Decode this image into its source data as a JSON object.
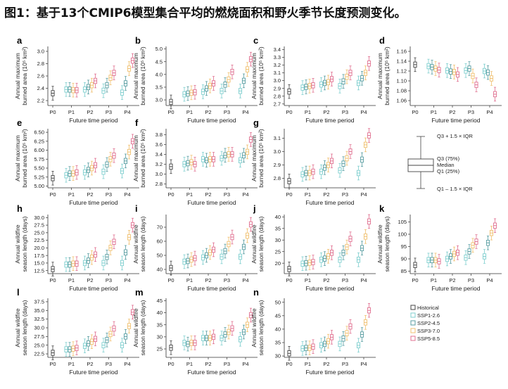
{
  "figure_title": "图1：基于13个CMIP6模型集合平均的燃烧面积和野火季节长度预测变化。",
  "xlabel": "Future time period",
  "categories": [
    "P0",
    "P1",
    "P2",
    "P3",
    "P4"
  ],
  "ylabel_area": [
    "Annual maximum",
    "burned area (10⁵ km²)"
  ],
  "ylabel_season": [
    "Annual wildfire",
    "season length (days)"
  ],
  "legend_items": [
    {
      "key": "historical",
      "label": "Historical",
      "color": "#444444"
    },
    {
      "key": "ssp126",
      "label": "SSP1-2.6",
      "color": "#7fcfcf"
    },
    {
      "key": "ssp245",
      "label": "SSP2-4.5",
      "color": "#5a9ea2"
    },
    {
      "key": "ssp370",
      "label": "SSP3-7.0",
      "color": "#f0c070"
    },
    {
      "key": "ssp585",
      "label": "SSP5-8.5",
      "color": "#e07090"
    }
  ],
  "box_legend": {
    "top": "Q3 + 1.5 × IQR",
    "q3": "Q3 (75%)",
    "median": "Median",
    "q1": "Q1 (25%)",
    "bottom": "Q1 – 1.5 × IQR"
  },
  "chart_data": [
    {
      "label": "a",
      "type": "box",
      "metric": "area",
      "ylim": [
        2.12,
        3.08
      ],
      "yticks": [
        "2.2",
        "2.4",
        "2.6",
        "2.8",
        "3.0"
      ],
      "historical": 2.32,
      "medians": [
        [
          2.38,
          2.38,
          2.37,
          2.37
        ],
        [
          2.38,
          2.42,
          2.45,
          2.52
        ],
        [
          2.36,
          2.45,
          2.57,
          2.65
        ],
        [
          2.33,
          2.48,
          2.72,
          2.85
        ]
      ]
    },
    {
      "label": "b",
      "type": "box",
      "metric": "area",
      "ylim": [
        2.78,
        5.1
      ],
      "yticks": [
        "3.0",
        "3.5",
        "4.0",
        "4.5",
        "5.0"
      ],
      "historical": 2.92,
      "medians": [
        [
          3.22,
          3.25,
          3.28,
          3.3
        ],
        [
          3.32,
          3.45,
          3.55,
          3.65
        ],
        [
          3.35,
          3.6,
          3.8,
          4.1
        ],
        [
          3.35,
          3.75,
          4.2,
          4.6
        ]
      ]
    },
    {
      "label": "c",
      "type": "box",
      "metric": "area",
      "ylim": [
        2.68,
        3.44
      ],
      "yticks": [
        "2.7",
        "2.8",
        "2.9",
        "3.0",
        "3.1",
        "3.2",
        "3.3",
        "3.4"
      ],
      "historical": 2.86,
      "medians": [
        [
          2.91,
          2.92,
          2.93,
          2.94
        ],
        [
          2.95,
          2.97,
          2.98,
          3.02
        ],
        [
          2.93,
          2.99,
          3.05,
          3.1
        ],
        [
          2.97,
          3.03,
          3.1,
          3.22
        ]
      ]
    },
    {
      "label": "d",
      "type": "box",
      "metric": "area",
      "ylim": [
        1.05,
        1.17
      ],
      "yticks": [
        "1.06",
        "1.08",
        "1.10",
        "1.12",
        "1.14",
        "1.16"
      ],
      "historical": 1.133,
      "medians": [
        [
          1.13,
          1.128,
          1.125,
          1.122
        ],
        [
          1.121,
          1.119,
          1.118,
          1.113
        ],
        [
          1.121,
          1.125,
          1.11,
          1.092
        ],
        [
          1.12,
          1.117,
          1.105,
          1.073
        ]
      ]
    },
    {
      "label": "e",
      "type": "box",
      "metric": "area",
      "ylim": [
        4.95,
        6.6
      ],
      "yticks": [
        "5.00",
        "5.25",
        "5.50",
        "5.75",
        "6.00",
        "6.25",
        "6.50"
      ],
      "historical": 5.22,
      "medians": [
        [
          5.3,
          5.35,
          5.35,
          5.38
        ],
        [
          5.38,
          5.45,
          5.5,
          5.58
        ],
        [
          5.4,
          5.6,
          5.75,
          5.85
        ],
        [
          5.42,
          5.7,
          5.95,
          6.25
        ]
      ]
    },
    {
      "label": "f",
      "type": "box",
      "metric": "area",
      "ylim": [
        2.72,
        3.92
      ],
      "yticks": [
        "2.8",
        "3.0",
        "3.2",
        "3.4",
        "3.6",
        "3.8"
      ],
      "historical": 3.15,
      "medians": [
        [
          3.2,
          3.22,
          3.24,
          3.2
        ],
        [
          3.3,
          3.28,
          3.3,
          3.3
        ],
        [
          3.32,
          3.38,
          3.4,
          3.4
        ],
        [
          3.28,
          3.38,
          3.45,
          3.7
        ]
      ]
    },
    {
      "label": "g",
      "type": "box",
      "metric": "area",
      "ylim": [
        2.73,
        3.17
      ],
      "yticks": [
        "2.8",
        "2.9",
        "3.0",
        "3.1"
      ],
      "historical": 2.78,
      "medians": [
        [
          2.83,
          2.84,
          2.84,
          2.85
        ],
        [
          2.85,
          2.88,
          2.9,
          2.93
        ],
        [
          2.86,
          2.91,
          2.95,
          3.0
        ],
        [
          2.84,
          2.94,
          3.05,
          3.12
        ]
      ]
    },
    {
      "label": "h",
      "type": "box",
      "metric": "season",
      "ylim": [
        11.5,
        31
      ],
      "yticks": [
        "12.5",
        "15.0",
        "17.5",
        "20.0",
        "22.5",
        "25.0",
        "27.5",
        "30.0"
      ],
      "historical": 13.0,
      "medians": [
        [
          14.5,
          14.5,
          14.8,
          14.8
        ],
        [
          15.0,
          15.8,
          16.8,
          17.8
        ],
        [
          15.0,
          17.0,
          20.0,
          22.0
        ],
        [
          15.0,
          18.5,
          23.5,
          27.5
        ]
      ]
    },
    {
      "label": "i",
      "type": "box",
      "metric": "season",
      "ylim": [
        37,
        79
      ],
      "yticks": [
        "40",
        "50",
        "60",
        "70"
      ],
      "historical": 41,
      "medians": [
        [
          45.5,
          46,
          47,
          48
        ],
        [
          48.5,
          50,
          52,
          54
        ],
        [
          49,
          53,
          58,
          63
        ],
        [
          49,
          56,
          64,
          72
        ]
      ]
    },
    {
      "label": "j",
      "type": "box",
      "metric": "season",
      "ylim": [
        15.5,
        41
      ],
      "yticks": [
        "15",
        "20",
        "25",
        "30",
        "35",
        "40"
      ],
      "historical": 17.5,
      "medians": [
        [
          19.8,
          20,
          20.2,
          20.5
        ],
        [
          21.5,
          22,
          23,
          24.5
        ],
        [
          21.5,
          24.5,
          27,
          30.5
        ],
        [
          21.5,
          26.5,
          31.5,
          38
        ]
      ]
    },
    {
      "label": "k",
      "type": "box",
      "metric": "season",
      "ylim": [
        84,
        108
      ],
      "yticks": [
        "85",
        "90",
        "95",
        "100",
        "105"
      ],
      "historical": 87.5,
      "medians": [
        [
          89.5,
          89.5,
          89.5,
          89
        ],
        [
          90,
          91,
          92,
          92.5
        ],
        [
          90.5,
          93,
          95.5,
          97
        ],
        [
          91,
          96.5,
          100.5,
          103.5
        ]
      ]
    },
    {
      "label": "l",
      "type": "box",
      "metric": "season",
      "ylim": [
        21.5,
        38.5
      ],
      "yticks": [
        "22.5",
        "25.0",
        "27.5",
        "30.0",
        "32.5",
        "35.0",
        "37.5"
      ],
      "historical": 22.8,
      "medians": [
        [
          23.8,
          23.8,
          24,
          24.2
        ],
        [
          24.8,
          25.5,
          26,
          26.8
        ],
        [
          25,
          26.5,
          28.2,
          29.8
        ],
        [
          25,
          27.5,
          30.5,
          34.5
        ]
      ]
    },
    {
      "label": "m",
      "type": "box",
      "metric": "season",
      "ylim": [
        21.5,
        46
      ],
      "yticks": [
        "25",
        "30",
        "35",
        "40",
        "45"
      ],
      "historical": 25.5,
      "medians": [
        [
          27.5,
          27,
          27.5,
          27.5
        ],
        [
          29.5,
          29.5,
          29.5,
          30
        ],
        [
          29.5,
          31,
          32,
          33.5
        ],
        [
          29,
          32,
          35,
          39
        ]
      ]
    },
    {
      "label": "n",
      "type": "box",
      "metric": "season",
      "ylim": [
        29.5,
        51.5
      ],
      "yticks": [
        "30",
        "35",
        "40",
        "45",
        "50"
      ],
      "historical": 31,
      "medians": [
        [
          32.8,
          33,
          33,
          33.5
        ],
        [
          34,
          34.5,
          35.5,
          37
        ],
        [
          34.5,
          36.5,
          38.5,
          41
        ],
        [
          34,
          38,
          42.5,
          47
        ]
      ]
    }
  ]
}
